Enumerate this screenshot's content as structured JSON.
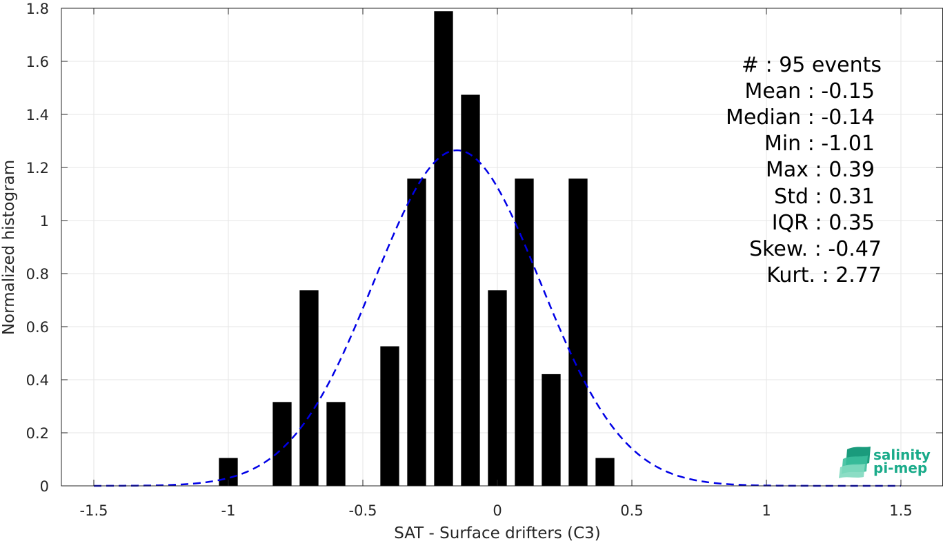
{
  "chart_data": {
    "type": "bar",
    "xlabel": "SAT - Surface drifters (C3)",
    "ylabel": "Normalized histogram",
    "xlim": [
      -1.5,
      1.5
    ],
    "ylim": [
      0,
      1.8
    ],
    "xticks": [
      -1.5,
      -1,
      -0.5,
      0,
      0.5,
      1,
      1.5
    ],
    "xtick_labels": [
      "-1.5",
      "-1",
      "-0.5",
      "0",
      "0.5",
      "1",
      "1.5"
    ],
    "yticks": [
      0,
      0.2,
      0.4,
      0.6,
      0.8,
      1,
      1.2,
      1.4,
      1.6,
      1.8
    ],
    "ytick_labels": [
      "0",
      "0.2",
      "0.4",
      "0.6",
      "0.8",
      "1",
      "1.2",
      "1.4",
      "1.6",
      "1.8"
    ],
    "grid": true,
    "bar_color": "#000000",
    "bar_width": 0.07,
    "bars": [
      {
        "x": -1.0,
        "y": 0.105
      },
      {
        "x": -0.8,
        "y": 0.316
      },
      {
        "x": -0.7,
        "y": 0.737
      },
      {
        "x": -0.6,
        "y": 0.316
      },
      {
        "x": -0.4,
        "y": 0.526
      },
      {
        "x": -0.3,
        "y": 1.158
      },
      {
        "x": -0.2,
        "y": 1.789
      },
      {
        "x": -0.1,
        "y": 1.474
      },
      {
        "x": 0.0,
        "y": 0.737
      },
      {
        "x": 0.1,
        "y": 1.158
      },
      {
        "x": 0.2,
        "y": 0.421
      },
      {
        "x": 0.3,
        "y": 1.158
      },
      {
        "x": 0.4,
        "y": 0.105
      }
    ],
    "fit_curve": {
      "type": "gaussian",
      "mean": -0.15,
      "std": 0.31,
      "peak": 1.265,
      "x_range": [
        -1.5,
        1.5
      ],
      "color": "#0000e6",
      "style": "dashed"
    },
    "annotations": [
      "#  : 95 events",
      "Mean : -0.15",
      "Median : -0.14",
      "Min : -1.01",
      "Max : 0.39",
      "Std : 0.31",
      "IQR : 0.35",
      "Skew. : -0.47",
      "Kurt. : 2.77"
    ]
  },
  "logo": {
    "line1": "salinity",
    "line2": "pi-mep",
    "color": "#1aab8a"
  }
}
